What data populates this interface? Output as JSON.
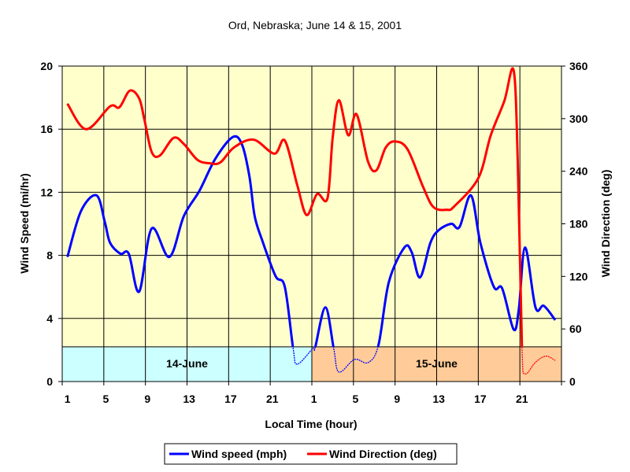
{
  "chart_data": {
    "type": "line",
    "title": "Ord, Nebraska; June 14 & 15, 2001",
    "xlabel": "Local Time (hour)",
    "ylabel": "Wind Speed (mi/hr)",
    "y2label": "Wind Direction (deg)",
    "x_range": [
      0.5,
      48.5
    ],
    "ylim": [
      0,
      20
    ],
    "y2lim": [
      0,
      360
    ],
    "yticks": [
      "0",
      "4",
      "8",
      "12",
      "16",
      "20"
    ],
    "y2ticks": [
      "0",
      "60",
      "120",
      "180",
      "240",
      "300",
      "360"
    ],
    "xticks": [
      {
        "h": 1,
        "label": "1"
      },
      {
        "h": 5,
        "label": "5"
      },
      {
        "h": 9,
        "label": "9"
      },
      {
        "h": 13,
        "label": "13"
      },
      {
        "h": 17,
        "label": "17"
      },
      {
        "h": 21,
        "label": "21"
      },
      {
        "h": 25,
        "label": "1"
      },
      {
        "h": 29,
        "label": "5"
      },
      {
        "h": 33,
        "label": "9"
      },
      {
        "h": 37,
        "label": "13"
      },
      {
        "h": 41,
        "label": "17"
      },
      {
        "h": 45,
        "label": "21"
      }
    ],
    "grid": true,
    "legend_position": "bottom",
    "day_bands": [
      {
        "label": "14-June",
        "from": 0.5,
        "to": 24.5,
        "color": "#ccffff",
        "top_value": 2.2
      },
      {
        "label": "15-June",
        "from": 24.5,
        "to": 48.5,
        "color": "#ffcc99",
        "top_value": 2.2
      }
    ],
    "series": [
      {
        "name": "Wind speed (mph)",
        "axis": "left",
        "color": "#0000ff",
        "points": [
          [
            1,
            7.9
          ],
          [
            2.3,
            10.8
          ],
          [
            3.8,
            11.8
          ],
          [
            4.6,
            10.1
          ],
          [
            5.1,
            8.8
          ],
          [
            6.1,
            8.1
          ],
          [
            6.9,
            8.1
          ],
          [
            7.9,
            5.7
          ],
          [
            9.1,
            9.7
          ],
          [
            10.8,
            7.9
          ],
          [
            12.2,
            10.5
          ],
          [
            13.7,
            12.1
          ],
          [
            15.2,
            14.1
          ],
          [
            16.9,
            15.5
          ],
          [
            17.8,
            15.0
          ],
          [
            18.5,
            13.0
          ],
          [
            19,
            10.5
          ],
          [
            19.7,
            9.0
          ],
          [
            21,
            6.7
          ],
          [
            21.9,
            6.0
          ],
          [
            22.7,
            2.1
          ],
          [
            23.1,
            1.1
          ],
          [
            24.6,
            2.1
          ],
          [
            24.8,
            2.1
          ],
          [
            25.8,
            4.7
          ],
          [
            26.6,
            2.1
          ],
          [
            27.1,
            0.6
          ],
          [
            28.6,
            1.4
          ],
          [
            29.9,
            1.2
          ],
          [
            30.9,
            2.3
          ],
          [
            31.9,
            6.3
          ],
          [
            33.4,
            8.5
          ],
          [
            34.1,
            8.2
          ],
          [
            34.9,
            6.6
          ],
          [
            35.9,
            8.8
          ],
          [
            36.7,
            9.6
          ],
          [
            37.9,
            10.0
          ],
          [
            38.7,
            9.8
          ],
          [
            39.8,
            11.8
          ],
          [
            40.7,
            8.8
          ],
          [
            42,
            6.0
          ],
          [
            42.8,
            5.9
          ],
          [
            43.9,
            3.3
          ],
          [
            44.4,
            4.6
          ],
          [
            45,
            8.5
          ],
          [
            46,
            4.7
          ],
          [
            46.8,
            4.8
          ],
          [
            47.9,
            3.9
          ]
        ]
      },
      {
        "name": "Wind Direction (deg)",
        "axis": "right",
        "color": "#ff0000",
        "points": [
          [
            1,
            317
          ],
          [
            2.8,
            288
          ],
          [
            5.1,
            314
          ],
          [
            6,
            313
          ],
          [
            7,
            332
          ],
          [
            7.9,
            323
          ],
          [
            8.4,
            299
          ],
          [
            9.1,
            262
          ],
          [
            9.9,
            258
          ],
          [
            11.2,
            278
          ],
          [
            12.2,
            271
          ],
          [
            13.5,
            253
          ],
          [
            14.7,
            249
          ],
          [
            15.7,
            250
          ],
          [
            17,
            267
          ],
          [
            18.9,
            276
          ],
          [
            20.9,
            260
          ],
          [
            21.9,
            275
          ],
          [
            23.1,
            224
          ],
          [
            24,
            190
          ],
          [
            25,
            214
          ],
          [
            26,
            209
          ],
          [
            26.5,
            278
          ],
          [
            27.1,
            321
          ],
          [
            28,
            281
          ],
          [
            28.8,
            305
          ],
          [
            29.9,
            251
          ],
          [
            30.7,
            241
          ],
          [
            31.6,
            267
          ],
          [
            32.5,
            274
          ],
          [
            33.7,
            265
          ],
          [
            35.2,
            222
          ],
          [
            36.2,
            199
          ],
          [
            37.5,
            196
          ],
          [
            38.2,
            200
          ],
          [
            40.5,
            232
          ],
          [
            41.7,
            281
          ],
          [
            43,
            320
          ],
          [
            43.9,
            355
          ],
          [
            44.3,
            249
          ],
          [
            44.7,
            39
          ],
          [
            45,
            9
          ],
          [
            46,
            22
          ],
          [
            47,
            29
          ],
          [
            47.9,
            24
          ]
        ]
      }
    ]
  }
}
